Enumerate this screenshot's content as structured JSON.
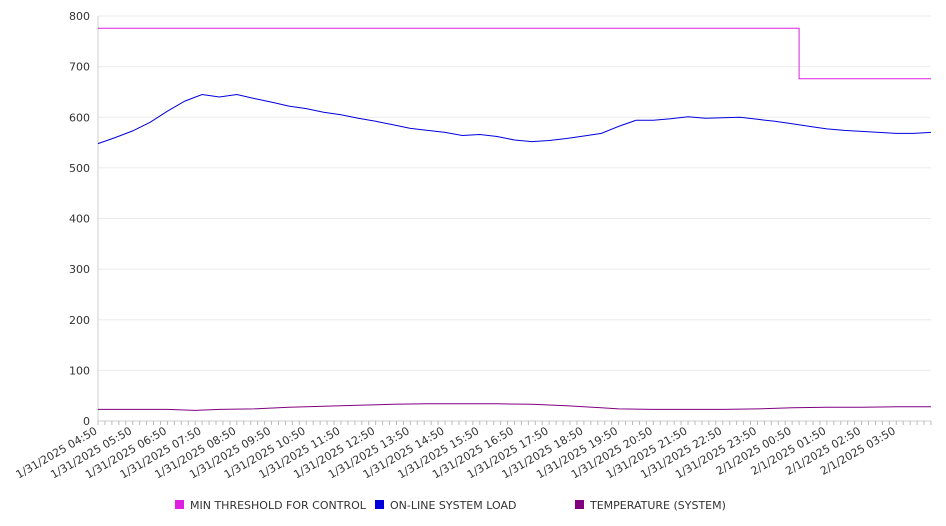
{
  "chart_data": {
    "type": "line",
    "title": "",
    "xlabel": "",
    "ylabel": "",
    "ylim": [
      0,
      800
    ],
    "yticks": [
      0,
      100,
      200,
      300,
      400,
      500,
      600,
      700,
      800
    ],
    "grid": true,
    "legend_position": "bottom",
    "x_tick_labels": [
      "1/31/2025 04:50",
      "1/31/2025 05:50",
      "1/31/2025 06:50",
      "1/31/2025 07:50",
      "1/31/2025 08:50",
      "1/31/2025 09:50",
      "1/31/2025 10:50",
      "1/31/2025 11:50",
      "1/31/2025 12:50",
      "1/31/2025 13:50",
      "1/31/2025 14:50",
      "1/31/2025 15:50",
      "1/31/2025 16:50",
      "1/31/2025 17:50",
      "1/31/2025 18:50",
      "1/31/2025 19:50",
      "1/31/2025 20:50",
      "1/31/2025 21:50",
      "1/31/2025 22:50",
      "1/31/2025 23:50",
      "2/1/2025 00:50",
      "2/1/2025 01:50",
      "2/1/2025 02:50",
      "2/1/2025 03:50"
    ],
    "x_hours_start": 0,
    "x_hours_end": 24,
    "series": [
      {
        "name": "MIN THRESHOLD FOR CONTROL",
        "color": "#e020e0",
        "x": [
          0,
          20.2,
          20.2,
          24
        ],
        "y": [
          776,
          776,
          676,
          676
        ]
      },
      {
        "name": "ON-LINE SYSTEM LOAD",
        "color": "#0000dd",
        "x": [
          0,
          0.5,
          1,
          1.5,
          2,
          2.5,
          3,
          3.5,
          4,
          4.5,
          5,
          5.5,
          6,
          6.5,
          7,
          7.5,
          8,
          8.5,
          9,
          9.5,
          10,
          10.5,
          11,
          11.5,
          12,
          12.5,
          13,
          13.5,
          14,
          14.5,
          15,
          15.5,
          16,
          16.5,
          17,
          17.5,
          18,
          18.5,
          19,
          19.5,
          20,
          20.5,
          21,
          21.5,
          22,
          22.5,
          23,
          23.5,
          24
        ],
        "y": [
          548,
          560,
          573,
          590,
          612,
          632,
          645,
          640,
          645,
          637,
          630,
          622,
          617,
          610,
          605,
          598,
          592,
          585,
          578,
          574,
          570,
          564,
          566,
          562,
          555,
          552,
          554,
          558,
          563,
          568,
          582,
          594,
          594,
          597,
          601,
          598,
          599,
          600,
          596,
          592,
          587,
          582,
          577,
          574,
          572,
          570,
          568,
          568,
          570
        ]
      },
      {
        "name": "TEMPERATURE (SYSTEM)",
        "color": "#800080",
        "x": [
          0,
          1,
          2,
          2.8,
          3.5,
          4.5,
          5.5,
          6.5,
          7.5,
          8.5,
          9.5,
          10.5,
          11.5,
          12.5,
          13.5,
          14.5,
          15,
          16,
          17,
          18,
          19,
          20,
          21,
          22,
          23,
          24
        ],
        "y": [
          23,
          23,
          23,
          21,
          23,
          24,
          27,
          29,
          31,
          33,
          34,
          34,
          34,
          33,
          30,
          26,
          24,
          23,
          23,
          23,
          24,
          26,
          27,
          27,
          28,
          28
        ]
      }
    ]
  }
}
